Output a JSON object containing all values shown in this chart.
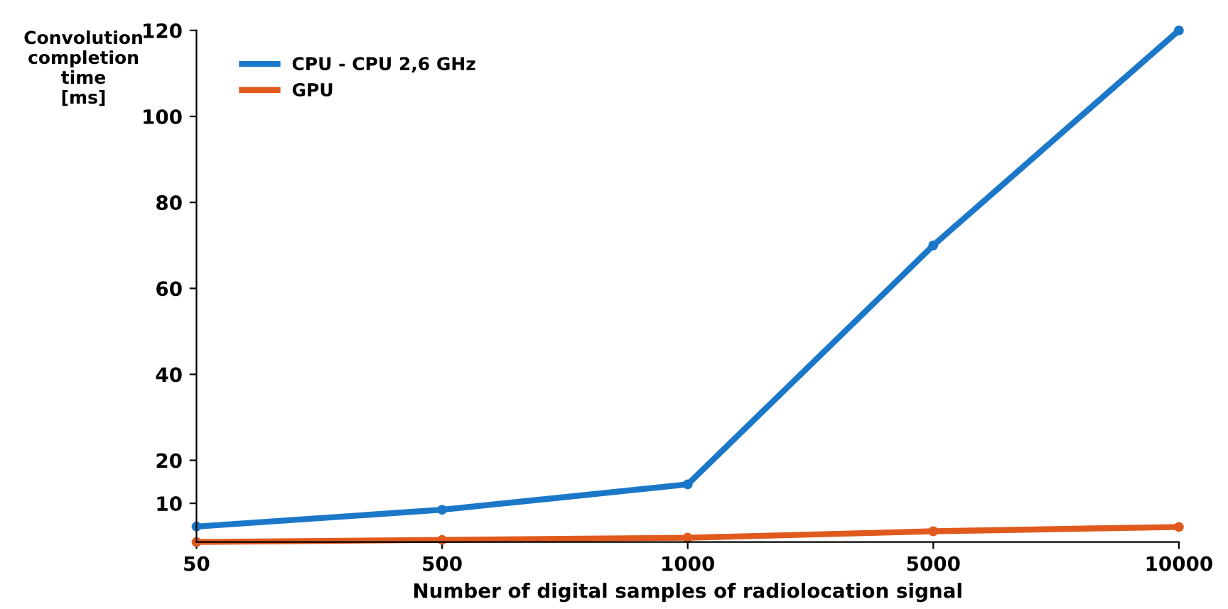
{
  "chart_data": {
    "type": "line",
    "ylabel": "Convolution\ncompletion\ntime\n[ms]",
    "xlabel": "Number of digital samples of radiolocation signal",
    "categories": [
      "50",
      "500",
      "1000",
      "5000",
      "10000"
    ],
    "series": [
      {
        "name": "CPU - CPU 2,6 GHz",
        "color": "#1b78c8",
        "values": [
          4.6,
          8.5,
          14.4,
          70,
          120
        ]
      },
      {
        "name": "GPU",
        "color": "#e05a1e",
        "values": [
          1,
          1.5,
          2,
          3.5,
          4.5
        ]
      }
    ],
    "ylim": [
      1,
      120
    ],
    "yticks": [
      10,
      20,
      40,
      60,
      80,
      100,
      120
    ],
    "grid": false,
    "legend": "top left",
    "marker": "circle",
    "line_style": "solid"
  }
}
